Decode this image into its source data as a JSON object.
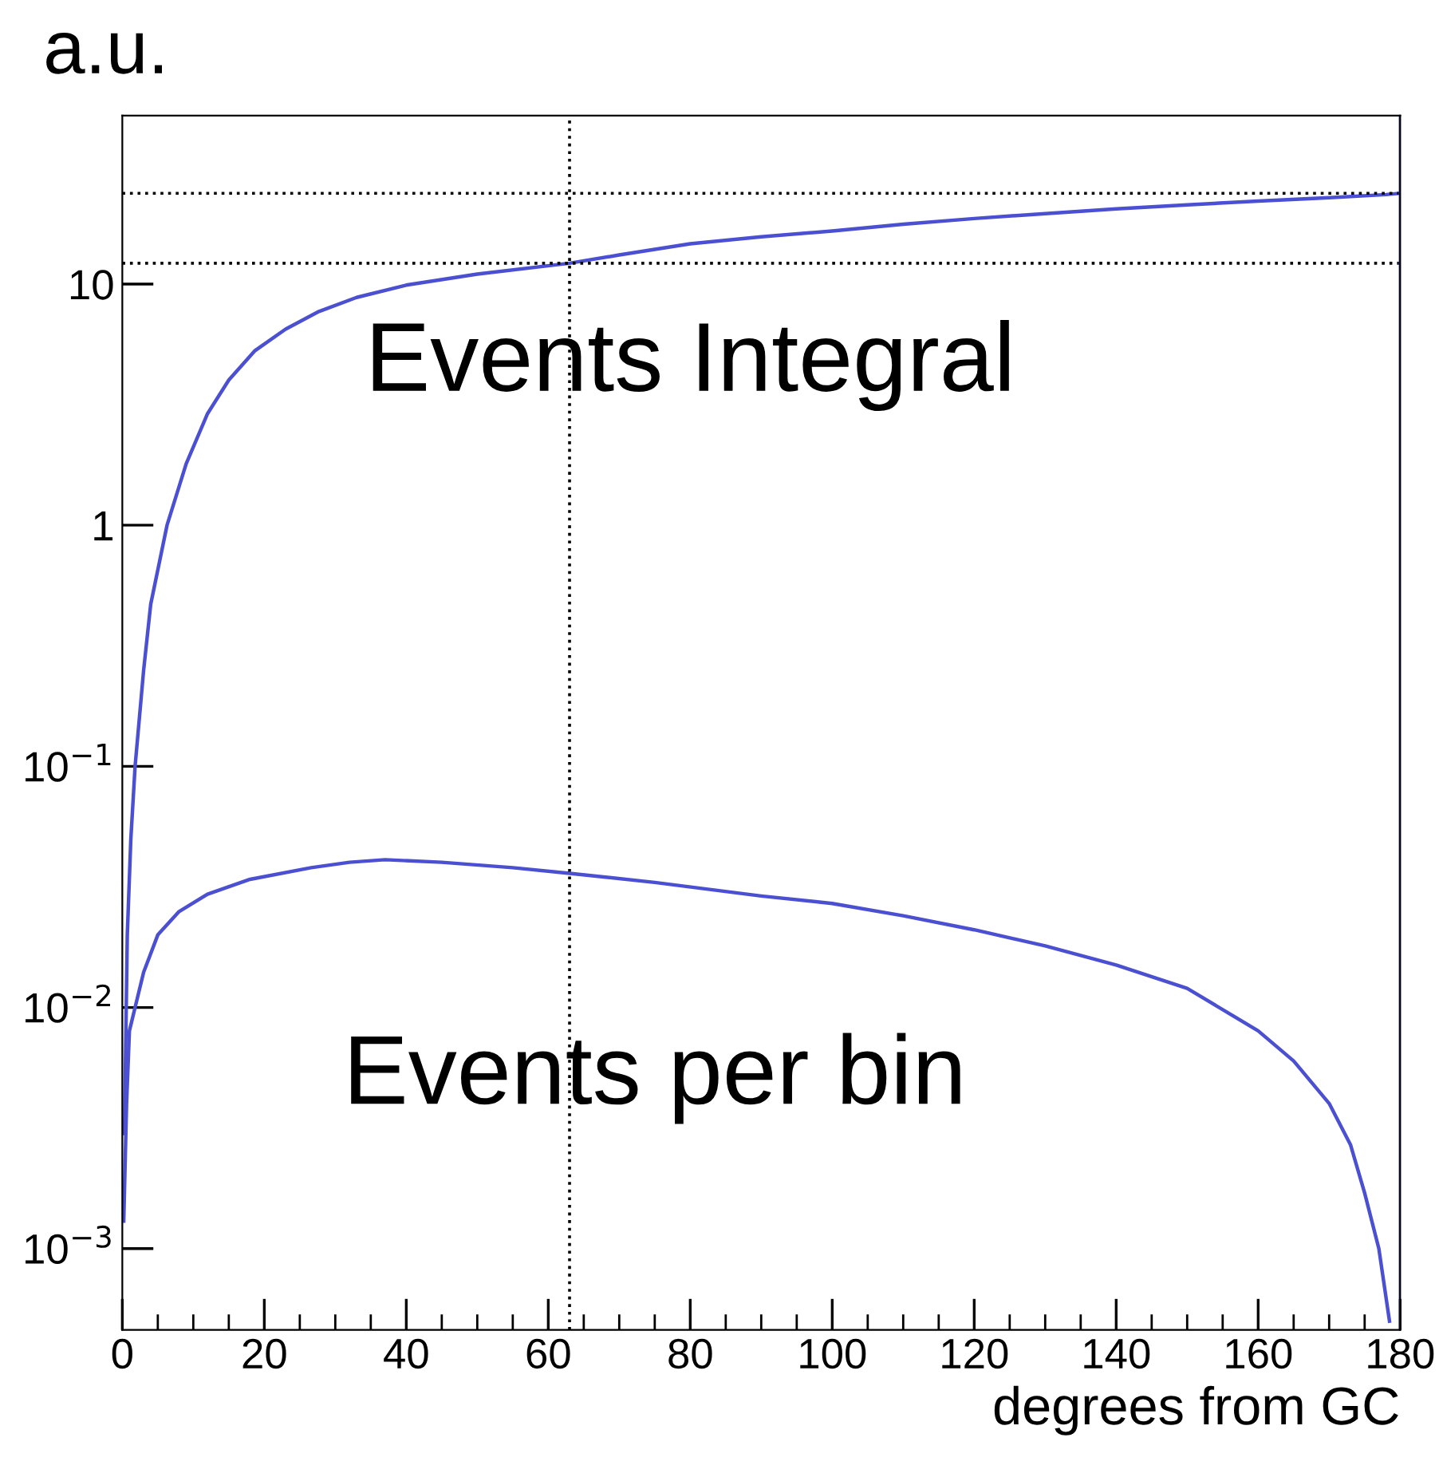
{
  "chart_data": {
    "type": "line",
    "ylabel": "a.u.",
    "xlabel": "degrees from GC",
    "log": "y",
    "grid": false,
    "legend": false,
    "marker": "none",
    "line_style": "solid",
    "xlim": [
      0,
      180
    ],
    "xticks": [
      0,
      20,
      40,
      60,
      80,
      100,
      120,
      140,
      160,
      180
    ],
    "ylim": [
      0.00046,
      50
    ],
    "yticks": [
      {
        "value": 0.001,
        "label": "10$^{−3}$"
      },
      {
        "value": 0.01,
        "label": "10$^{−2}$"
      },
      {
        "value": 0.1,
        "label": "10$^{−1}$"
      },
      1,
      10
    ],
    "series": [
      {
        "name": "Events Integral",
        "color": "#4b50d2",
        "x": [
          0.3,
          0.7,
          1.2,
          1.8,
          3,
          4,
          6.3,
          9,
          12,
          15,
          18.7,
          23,
          27.7,
          33,
          40,
          50,
          63,
          70,
          80,
          90,
          100,
          110,
          120,
          130,
          140,
          150,
          160,
          170,
          178,
          180
        ],
        "values": [
          0.003,
          0.02,
          0.05,
          0.1,
          0.25,
          0.47,
          1,
          1.8,
          2.9,
          4,
          5.3,
          6.5,
          7.7,
          8.8,
          9.9,
          11,
          12.2,
          13.2,
          14.7,
          15.7,
          16.6,
          17.7,
          18.7,
          19.6,
          20.5,
          21.3,
          22.1,
          22.8,
          23.5,
          23.8
        ]
      },
      {
        "name": "Events per bin",
        "color": "#4b50d2",
        "x": [
          0.2,
          0.6,
          1,
          1.8,
          3,
          5,
          8,
          12,
          18,
          26.6,
          32,
          37,
          45,
          55,
          63,
          75,
          90,
          100,
          110,
          120,
          130,
          140,
          150,
          160,
          165,
          170,
          173,
          175,
          177,
          178.5
        ],
        "values": [
          0.0013,
          0.004,
          0.008,
          0.01,
          0.014,
          0.02,
          0.025,
          0.0295,
          0.034,
          0.038,
          0.04,
          0.041,
          0.04,
          0.038,
          0.036,
          0.033,
          0.029,
          0.027,
          0.024,
          0.021,
          0.018,
          0.015,
          0.012,
          0.008,
          0.006,
          0.004,
          0.0027,
          0.0017,
          0.001,
          0.0005
        ]
      }
    ],
    "ref_lines": [
      {
        "axis": "y",
        "value": 23.8,
        "color": "#000000",
        "line_style": "dotted"
      },
      {
        "axis": "y",
        "value": 12.2,
        "color": "#000000",
        "line_style": "dotted"
      },
      {
        "axis": "x",
        "value": 63,
        "color": "#000000",
        "line_style": "dotted"
      },
      {
        "axis": "x",
        "value": 180,
        "color": "#4b50d2",
        "line_style": "solid"
      }
    ]
  }
}
